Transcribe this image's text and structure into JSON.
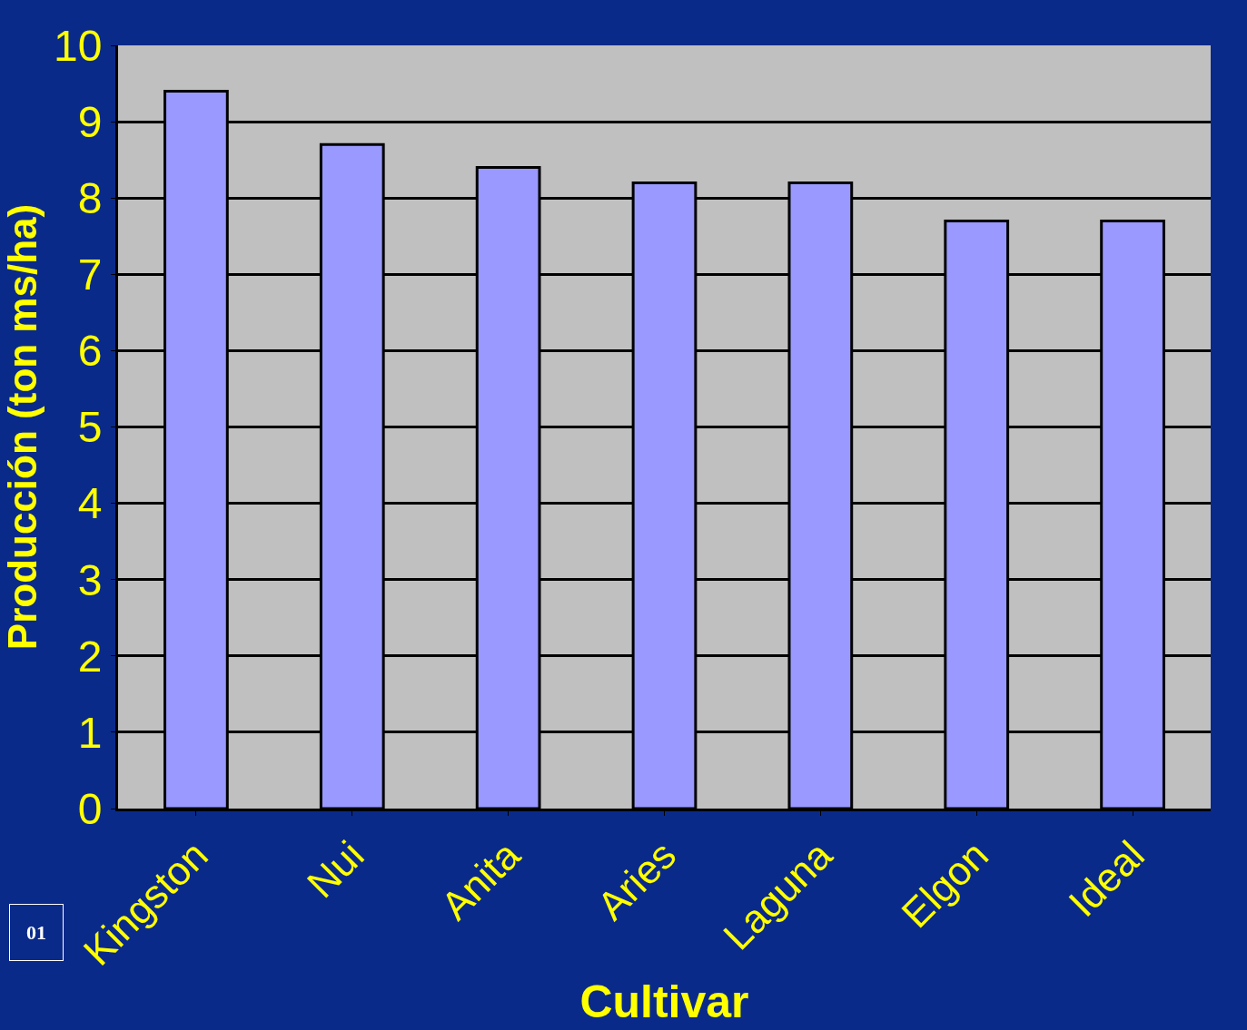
{
  "chart_data": {
    "type": "bar",
    "xlabel": "Cultivar",
    "ylabel": "Producción (ton ms/ha)",
    "categories": [
      "Kingston",
      "Nui",
      "Anita",
      "Aries",
      "Laguna",
      "Elgon",
      "Ideal"
    ],
    "values": [
      9.4,
      8.7,
      8.4,
      8.2,
      8.2,
      7.7,
      7.7
    ],
    "color": "#9999ff",
    "ylim": [
      0,
      10
    ],
    "yticks": [
      0,
      1,
      2,
      3,
      4,
      5,
      6,
      7,
      8,
      9,
      10
    ],
    "grid": "y",
    "legend": false,
    "annotations": [
      "01"
    ]
  }
}
